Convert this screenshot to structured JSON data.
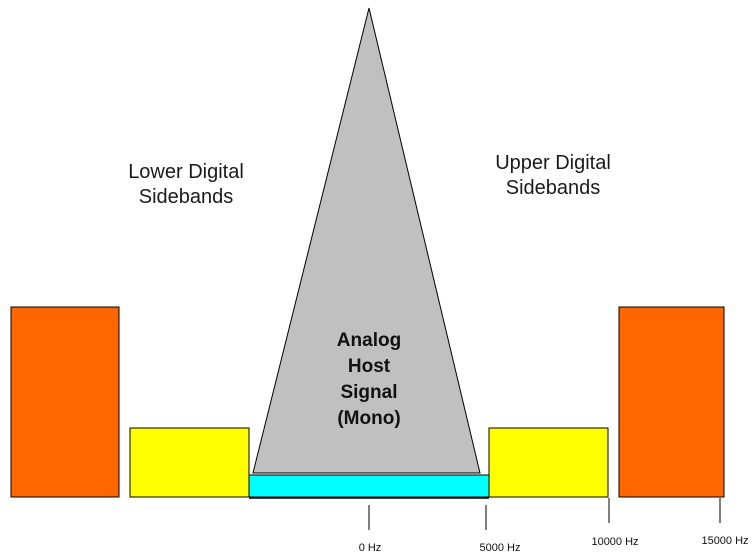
{
  "colors": {
    "primary_sideband": "#ff6600",
    "secondary_sideband": "#ffff00",
    "analog_signal": "#c0c0c0",
    "tertiary_band": "#00ffff",
    "outline": "#000000"
  },
  "labels": {
    "lower_sidebands": [
      "Lower Digital",
      "Sidebands"
    ],
    "upper_sidebands": [
      "Upper Digital",
      "Sidebands"
    ],
    "analog_signal": [
      "Analog",
      "Host",
      "Signal",
      "(Mono)"
    ]
  },
  "frequency_axis": {
    "ticks": [
      {
        "value": 0,
        "label": "0 Hz"
      },
      {
        "value": 5000,
        "label": "5000 Hz"
      },
      {
        "value": 10000,
        "label": "10000 Hz"
      },
      {
        "value": 15000,
        "label": "15000 Hz"
      }
    ]
  }
}
